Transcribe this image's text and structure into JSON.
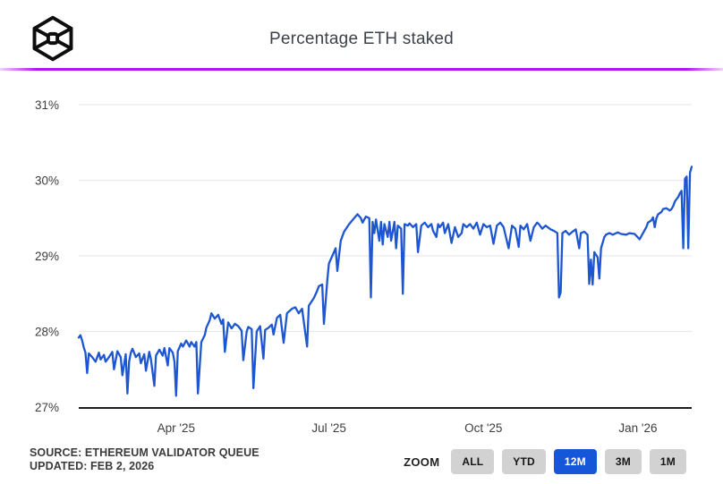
{
  "header": {
    "title": "Percentage ETH staked",
    "logo_icon": "cube-logo"
  },
  "chart_data": {
    "type": "line",
    "title": "Percentage ETH staked",
    "series_name": "Percentage ETH staked",
    "line_color": "#1d56d0",
    "grid": "horizontal-only",
    "x_unit": "days since Feb 2, 2025",
    "x_range": [
      0,
      365
    ],
    "y_range_pct": [
      27,
      31
    ],
    "y_tick_suffix": "%",
    "y_ticks": [
      31,
      30,
      29,
      28,
      27
    ],
    "x_ticks": [
      {
        "label": "Apr '25",
        "day": 58
      },
      {
        "label": "Jul '25",
        "day": 149
      },
      {
        "label": "Oct '25",
        "day": 241
      },
      {
        "label": "Jan '26",
        "day": 333
      }
    ],
    "points": [
      [
        0,
        27.92
      ],
      [
        1,
        27.95
      ],
      [
        2,
        27.88
      ],
      [
        3,
        27.79
      ],
      [
        4,
        27.72
      ],
      [
        5,
        27.45
      ],
      [
        6,
        27.71
      ],
      [
        8,
        27.66
      ],
      [
        10,
        27.6
      ],
      [
        12,
        27.72
      ],
      [
        13,
        27.63
      ],
      [
        15,
        27.69
      ],
      [
        16,
        27.6
      ],
      [
        18,
        27.66
      ],
      [
        20,
        27.73
      ],
      [
        21,
        27.5
      ],
      [
        23,
        27.74
      ],
      [
        25,
        27.66
      ],
      [
        26,
        27.42
      ],
      [
        28,
        27.7
      ],
      [
        29,
        27.18
      ],
      [
        30,
        27.6
      ],
      [
        31,
        27.72
      ],
      [
        32,
        27.77
      ],
      [
        34,
        27.66
      ],
      [
        36,
        27.71
      ],
      [
        37,
        27.58
      ],
      [
        39,
        27.7
      ],
      [
        40,
        27.48
      ],
      [
        42,
        27.73
      ],
      [
        43,
        27.63
      ],
      [
        45,
        27.28
      ],
      [
        46,
        27.68
      ],
      [
        48,
        27.76
      ],
      [
        50,
        27.68
      ],
      [
        51,
        27.78
      ],
      [
        53,
        27.55
      ],
      [
        54,
        27.78
      ],
      [
        56,
        27.72
      ],
      [
        57,
        27.6
      ],
      [
        58,
        27.15
      ],
      [
        59,
        27.74
      ],
      [
        61,
        27.84
      ],
      [
        62,
        27.8
      ],
      [
        64,
        27.88
      ],
      [
        66,
        27.8
      ],
      [
        67,
        27.86
      ],
      [
        69,
        27.8
      ],
      [
        70,
        27.86
      ],
      [
        71,
        27.18
      ],
      [
        73,
        27.86
      ],
      [
        75,
        27.95
      ],
      [
        76,
        28.05
      ],
      [
        78,
        28.15
      ],
      [
        79,
        28.24
      ],
      [
        81,
        28.17
      ],
      [
        83,
        28.22
      ],
      [
        85,
        28.1
      ],
      [
        86,
        28.16
      ],
      [
        87,
        27.73
      ],
      [
        89,
        28.12
      ],
      [
        91,
        28.04
      ],
      [
        93,
        28.1
      ],
      [
        95,
        28.07
      ],
      [
        97,
        28.01
      ],
      [
        98,
        27.62
      ],
      [
        100,
        28.0
      ],
      [
        101,
        28.06
      ],
      [
        103,
        28.03
      ],
      [
        104,
        27.25
      ],
      [
        106,
        28.0
      ],
      [
        108,
        28.07
      ],
      [
        110,
        27.64
      ],
      [
        111,
        28.02
      ],
      [
        113,
        28.05
      ],
      [
        115,
        28.09
      ],
      [
        116,
        27.96
      ],
      [
        118,
        28.18
      ],
      [
        120,
        28.22
      ],
      [
        122,
        27.85
      ],
      [
        124,
        28.24
      ],
      [
        127,
        28.3
      ],
      [
        129,
        28.32
      ],
      [
        131,
        28.24
      ],
      [
        133,
        28.3
      ],
      [
        136,
        27.8
      ],
      [
        137,
        28.34
      ],
      [
        140,
        28.44
      ],
      [
        142,
        28.54
      ],
      [
        143,
        28.6
      ],
      [
        145,
        28.62
      ],
      [
        146,
        28.1
      ],
      [
        148,
        28.68
      ],
      [
        149,
        28.9
      ],
      [
        151,
        29.0
      ],
      [
        153,
        29.1
      ],
      [
        154,
        28.8
      ],
      [
        156,
        29.2
      ],
      [
        158,
        29.32
      ],
      [
        161,
        29.42
      ],
      [
        164,
        29.5
      ],
      [
        166,
        29.55
      ],
      [
        168,
        29.5
      ],
      [
        169,
        29.44
      ],
      [
        171,
        29.52
      ],
      [
        173,
        29.5
      ],
      [
        174,
        28.45
      ],
      [
        175,
        29.45
      ],
      [
        176,
        29.3
      ],
      [
        177,
        29.48
      ],
      [
        179,
        29.2
      ],
      [
        180,
        29.45
      ],
      [
        181,
        29.15
      ],
      [
        182,
        29.42
      ],
      [
        184,
        29.25
      ],
      [
        185,
        29.45
      ],
      [
        186,
        29.2
      ],
      [
        188,
        29.45
      ],
      [
        189,
        29.1
      ],
      [
        190,
        29.4
      ],
      [
        192,
        29.36
      ],
      [
        193,
        28.5
      ],
      [
        194,
        29.42
      ],
      [
        196,
        29.4
      ],
      [
        197,
        29.43
      ],
      [
        199,
        29.38
      ],
      [
        201,
        29.42
      ],
      [
        202,
        29.05
      ],
      [
        204,
        29.4
      ],
      [
        206,
        29.44
      ],
      [
        208,
        29.38
      ],
      [
        210,
        29.42
      ],
      [
        211,
        29.33
      ],
      [
        213,
        29.25
      ],
      [
        214,
        29.42
      ],
      [
        215,
        29.38
      ],
      [
        217,
        29.44
      ],
      [
        218,
        29.3
      ],
      [
        220,
        29.42
      ],
      [
        222,
        29.17
      ],
      [
        224,
        29.38
      ],
      [
        226,
        29.25
      ],
      [
        228,
        29.3
      ],
      [
        229,
        29.42
      ],
      [
        231,
        29.38
      ],
      [
        233,
        29.42
      ],
      [
        235,
        29.36
      ],
      [
        237,
        29.44
      ],
      [
        239,
        29.28
      ],
      [
        241,
        29.42
      ],
      [
        243,
        29.38
      ],
      [
        245,
        29.4
      ],
      [
        247,
        29.16
      ],
      [
        249,
        29.4
      ],
      [
        251,
        29.44
      ],
      [
        253,
        29.38
      ],
      [
        256,
        29.1
      ],
      [
        258,
        29.4
      ],
      [
        260,
        29.36
      ],
      [
        262,
        29.12
      ],
      [
        263,
        29.4
      ],
      [
        265,
        29.35
      ],
      [
        267,
        29.42
      ],
      [
        269,
        29.2
      ],
      [
        271,
        29.38
      ],
      [
        273,
        29.44
      ],
      [
        274,
        29.42
      ],
      [
        276,
        29.36
      ],
      [
        278,
        29.4
      ],
      [
        281,
        29.35
      ],
      [
        283,
        29.33
      ],
      [
        285,
        29.3
      ],
      [
        286,
        28.45
      ],
      [
        287,
        28.52
      ],
      [
        288,
        29.3
      ],
      [
        290,
        29.33
      ],
      [
        292,
        29.28
      ],
      [
        294,
        29.32
      ],
      [
        296,
        29.35
      ],
      [
        298,
        29.1
      ],
      [
        299,
        29.3
      ],
      [
        301,
        29.32
      ],
      [
        303,
        29.28
      ],
      [
        304,
        28.63
      ],
      [
        305,
        28.95
      ],
      [
        306,
        28.62
      ],
      [
        307,
        29.05
      ],
      [
        309,
        28.98
      ],
      [
        310,
        28.7
      ],
      [
        311,
        29.1
      ],
      [
        313,
        29.25
      ],
      [
        314,
        29.28
      ],
      [
        316,
        29.3
      ],
      [
        318,
        29.28
      ],
      [
        321,
        29.31
      ],
      [
        323,
        29.29
      ],
      [
        326,
        29.28
      ],
      [
        328,
        29.3
      ],
      [
        331,
        29.29
      ],
      [
        334,
        29.22
      ],
      [
        336,
        29.3
      ],
      [
        338,
        29.38
      ],
      [
        339,
        29.44
      ],
      [
        341,
        29.47
      ],
      [
        342,
        29.51
      ],
      [
        343,
        29.38
      ],
      [
        344,
        29.5
      ],
      [
        345,
        29.55
      ],
      [
        347,
        29.58
      ],
      [
        348,
        29.62
      ],
      [
        350,
        29.63
      ],
      [
        352,
        29.6
      ],
      [
        353,
        29.62
      ],
      [
        354,
        29.66
      ],
      [
        355,
        29.72
      ],
      [
        357,
        29.78
      ],
      [
        358,
        29.83
      ],
      [
        359,
        29.86
      ],
      [
        360,
        29.1
      ],
      [
        361,
        30.02
      ],
      [
        362,
        30.05
      ],
      [
        363,
        29.1
      ],
      [
        364,
        30.1
      ],
      [
        365,
        30.18
      ]
    ],
    "axis_color": "#1d1d1d",
    "gridline_color": "#e9e9e9",
    "tick_label_color": "#3d3d3d"
  },
  "footer": {
    "source_line1": "SOURCE: ETHEREUM VALIDATOR QUEUE",
    "source_line2": "UPDATED: FEB 2, 2026",
    "zoom_label": "ZOOM",
    "zoom_buttons": [
      {
        "label": "ALL",
        "active": false
      },
      {
        "label": "YTD",
        "active": false
      },
      {
        "label": "12M",
        "active": true
      },
      {
        "label": "3M",
        "active": false
      },
      {
        "label": "1M",
        "active": false
      }
    ],
    "active_button_color": "#1657d9",
    "inactive_button_color": "#d2d2d2"
  }
}
